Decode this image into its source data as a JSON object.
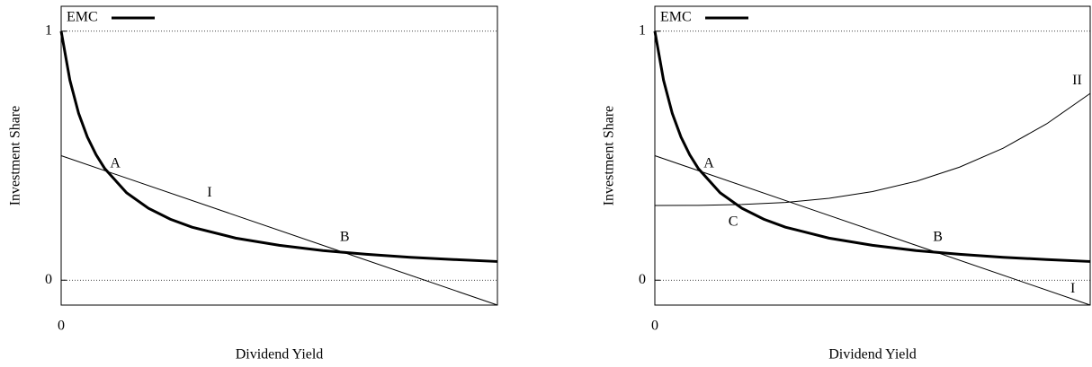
{
  "chart_data": [
    {
      "type": "line",
      "xlabel": "Dividend Yield",
      "ylabel": "Investment Share",
      "xlim": [
        0,
        10
      ],
      "ylim": [
        -0.1,
        1.1
      ],
      "xticks": [
        0
      ],
      "yticks": [
        0,
        1
      ],
      "grid": true,
      "legend": "upper left",
      "series": [
        {
          "name": "EMC",
          "color": "#000000",
          "linewidth": 3,
          "x": [
            0,
            0.2,
            0.4,
            0.6,
            0.8,
            1,
            1.5,
            2,
            2.5,
            3,
            4,
            5,
            6,
            7,
            8,
            9,
            10
          ],
          "values": [
            1,
            0.803,
            0.67,
            0.575,
            0.504,
            0.448,
            0.351,
            0.289,
            0.245,
            0.213,
            0.169,
            0.14,
            0.119,
            0.104,
            0.092,
            0.083,
            0.075
          ]
        },
        {
          "color": "#000000",
          "linewidth": 1,
          "x": [
            0,
            10
          ],
          "values": [
            0.5,
            -0.1
          ]
        }
      ],
      "annotations": [
        {
          "text": "A",
          "x": 1.24,
          "y": 0.466
        },
        {
          "text": "I",
          "x": 3.4,
          "y": 0.35
        },
        {
          "text": "B",
          "x": 6.5,
          "y": 0.17
        }
      ]
    },
    {
      "type": "line",
      "xlabel": "Dividend Yield",
      "ylabel": "Investment Share",
      "xlim": [
        0,
        10
      ],
      "ylim": [
        -0.1,
        1.1
      ],
      "xticks": [
        0
      ],
      "yticks": [
        0,
        1
      ],
      "grid": true,
      "legend": "upper left",
      "series": [
        {
          "name": "EMC",
          "color": "#000000",
          "linewidth": 3,
          "x": [
            0,
            0.2,
            0.4,
            0.6,
            0.8,
            1,
            1.5,
            2,
            2.5,
            3,
            4,
            5,
            6,
            7,
            8,
            9,
            10
          ],
          "values": [
            1,
            0.803,
            0.67,
            0.575,
            0.504,
            0.448,
            0.351,
            0.289,
            0.245,
            0.213,
            0.169,
            0.14,
            0.119,
            0.104,
            0.092,
            0.083,
            0.075
          ]
        },
        {
          "color": "#000000",
          "linewidth": 1,
          "x": [
            0,
            10
          ],
          "values": [
            0.5,
            -0.1
          ]
        },
        {
          "color": "#000000",
          "linewidth": 1,
          "x": [
            0,
            1,
            2,
            3,
            4,
            5,
            6,
            7,
            8,
            9,
            10
          ],
          "values": [
            0.3,
            0.3005,
            0.304,
            0.312,
            0.329,
            0.356,
            0.397,
            0.454,
            0.53,
            0.628,
            0.75
          ]
        }
      ],
      "annotations": [
        {
          "text": "A",
          "x": 1.24,
          "y": 0.466
        },
        {
          "text": "C",
          "x": 1.8,
          "y": 0.233
        },
        {
          "text": "B",
          "x": 6.5,
          "y": 0.17
        },
        {
          "text": "I",
          "x": 9.6,
          "y": -0.036
        },
        {
          "text": "II",
          "x": 9.7,
          "y": 0.8
        }
      ]
    }
  ]
}
